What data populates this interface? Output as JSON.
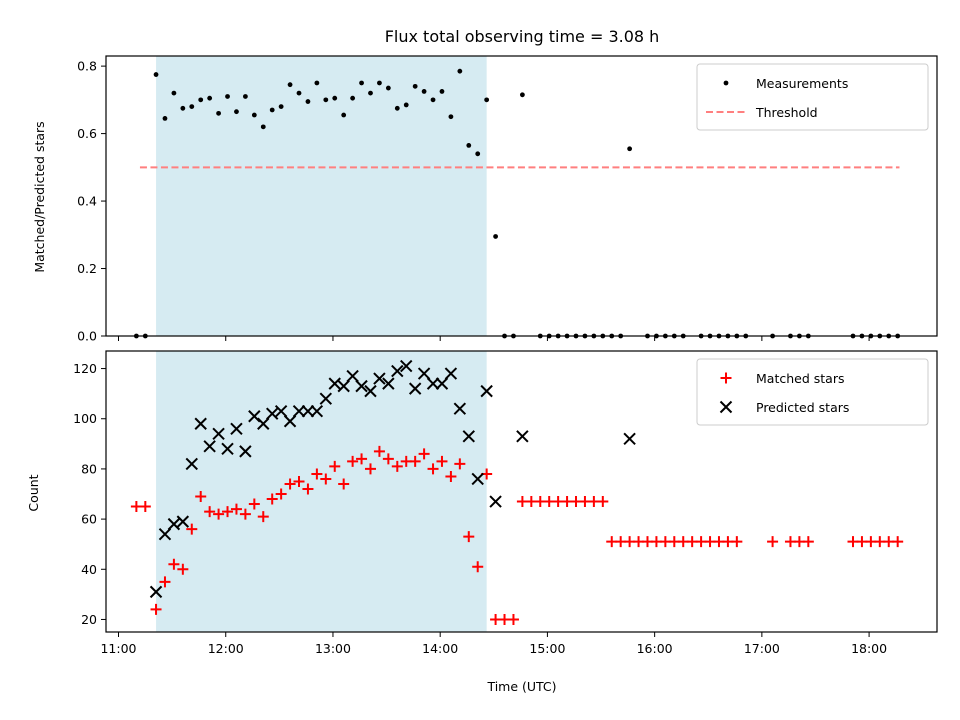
{
  "title": "Flux total observing time = 3.08 h",
  "xlabel": "Time (UTC)",
  "x_ticks": [
    "11:00",
    "12:00",
    "13:00",
    "14:00",
    "15:00",
    "16:00",
    "17:00",
    "18:00"
  ],
  "colors": {
    "measurements": "#000000",
    "threshold": "#ff7f7f",
    "shade": "#add8e6",
    "matched": "#ff0000",
    "predicted": "#000000"
  },
  "chart_data": [
    {
      "type": "scatter",
      "ylabel": "Matched/Predicted stars",
      "ylim": [
        0,
        0.83
      ],
      "y_ticks": [
        "0.0",
        "0.2",
        "0.4",
        "0.6",
        "0.8"
      ],
      "y_tick_values": [
        0,
        0.2,
        0.4,
        0.6,
        0.8
      ],
      "xlim": [
        "10:53",
        "18:38"
      ],
      "shaded_region": [
        "11:21",
        "14:26"
      ],
      "threshold": {
        "y": 0.5,
        "x_start": "11:12",
        "x_end": "18:17"
      },
      "legend": {
        "position": "upper right",
        "entries": [
          "Measurements",
          "Threshold"
        ]
      },
      "series": [
        {
          "name": "Measurements",
          "x": [
            "11:10",
            "11:15",
            "11:21",
            "11:26",
            "11:31",
            "11:36",
            "11:41",
            "11:46",
            "11:51",
            "11:56",
            "12:01",
            "12:06",
            "12:11",
            "12:16",
            "12:21",
            "12:26",
            "12:31",
            "12:36",
            "12:41",
            "12:46",
            "12:51",
            "12:56",
            "13:01",
            "13:06",
            "13:11",
            "13:16",
            "13:21",
            "13:26",
            "13:31",
            "13:36",
            "13:41",
            "13:46",
            "13:51",
            "13:56",
            "14:01",
            "14:06",
            "14:11",
            "14:16",
            "14:21",
            "14:26",
            "14:31",
            "14:36",
            "14:41",
            "14:46",
            "14:56",
            "15:01",
            "15:06",
            "15:11",
            "15:16",
            "15:21",
            "15:26",
            "15:31",
            "15:36",
            "15:41",
            "15:46",
            "15:56",
            "16:01",
            "16:06",
            "16:11",
            "16:16",
            "16:26",
            "16:31",
            "16:36",
            "16:41",
            "16:46",
            "16:51",
            "17:06",
            "17:16",
            "17:21",
            "17:26",
            "17:51",
            "17:56",
            "18:01",
            "18:06",
            "18:11",
            "18:16"
          ],
          "y": [
            0.0,
            0.0,
            0.775,
            0.645,
            0.72,
            0.675,
            0.68,
            0.7,
            0.705,
            0.66,
            0.71,
            0.665,
            0.71,
            0.655,
            0.62,
            0.67,
            0.68,
            0.745,
            0.72,
            0.695,
            0.75,
            0.7,
            0.705,
            0.655,
            0.705,
            0.75,
            0.72,
            0.75,
            0.735,
            0.675,
            0.685,
            0.74,
            0.725,
            0.7,
            0.725,
            0.65,
            0.785,
            0.565,
            0.54,
            0.7,
            0.295,
            0.0,
            0.0,
            0.715,
            0.0,
            0.0,
            0.0,
            0.0,
            0.0,
            0.0,
            0.0,
            0.0,
            0.0,
            0.0,
            0.555,
            0.0,
            0.0,
            0.0,
            0.0,
            0.0,
            0.0,
            0.0,
            0.0,
            0.0,
            0.0,
            0.0,
            0.0,
            0.0,
            0.0,
            0.0,
            0.0,
            0.0,
            0.0,
            0.0,
            0.0,
            0.0
          ]
        }
      ]
    },
    {
      "type": "scatter",
      "ylabel": "Count",
      "ylim": [
        15,
        127
      ],
      "y_ticks": [
        "20",
        "40",
        "60",
        "80",
        "100",
        "120"
      ],
      "y_tick_values": [
        20,
        40,
        60,
        80,
        100,
        120
      ],
      "xlim": [
        "10:53",
        "18:38"
      ],
      "shaded_region": [
        "11:21",
        "14:26"
      ],
      "legend": {
        "position": "upper right",
        "entries": [
          "Matched stars",
          "Predicted stars"
        ]
      },
      "series": [
        {
          "name": "Matched stars",
          "x": [
            "11:10",
            "11:15",
            "11:21",
            "11:26",
            "11:31",
            "11:36",
            "11:41",
            "11:46",
            "11:51",
            "11:56",
            "12:01",
            "12:06",
            "12:11",
            "12:16",
            "12:21",
            "12:26",
            "12:31",
            "12:36",
            "12:41",
            "12:46",
            "12:51",
            "12:56",
            "13:01",
            "13:06",
            "13:11",
            "13:16",
            "13:21",
            "13:26",
            "13:31",
            "13:36",
            "13:41",
            "13:46",
            "13:51",
            "13:56",
            "14:01",
            "14:06",
            "14:11",
            "14:16",
            "14:21",
            "14:26",
            "14:31",
            "14:36",
            "14:41",
            "14:46",
            "14:51",
            "14:56",
            "15:01",
            "15:06",
            "15:11",
            "15:16",
            "15:21",
            "15:26",
            "15:31",
            "15:36",
            "15:41",
            "15:46",
            "15:51",
            "15:56",
            "16:01",
            "16:06",
            "16:11",
            "16:16",
            "16:21",
            "16:26",
            "16:31",
            "16:36",
            "16:41",
            "16:46",
            "17:06",
            "17:16",
            "17:21",
            "17:26",
            "17:51",
            "17:56",
            "18:01",
            "18:06",
            "18:11",
            "18:16"
          ],
          "y": [
            65,
            65,
            24,
            35,
            42,
            40,
            56,
            69,
            63,
            62,
            63,
            64,
            62,
            66,
            61,
            68,
            70,
            74,
            75,
            72,
            78,
            76,
            81,
            74,
            83,
            84,
            80,
            87,
            84,
            81,
            83,
            83,
            86,
            80,
            83,
            77,
            82,
            53,
            41,
            78,
            20,
            20,
            20,
            67,
            67,
            67,
            67,
            67,
            67,
            67,
            67,
            67,
            67,
            51,
            51,
            51,
            51,
            51,
            51,
            51,
            51,
            51,
            51,
            51,
            51,
            51,
            51,
            51,
            51,
            51,
            51,
            51,
            51,
            51,
            51,
            51,
            51,
            51
          ]
        },
        {
          "name": "Predicted stars",
          "x": [
            "11:21",
            "11:26",
            "11:31",
            "11:36",
            "11:41",
            "11:46",
            "11:51",
            "11:56",
            "12:01",
            "12:06",
            "12:11",
            "12:16",
            "12:21",
            "12:26",
            "12:31",
            "12:36",
            "12:41",
            "12:46",
            "12:51",
            "12:56",
            "13:01",
            "13:06",
            "13:11",
            "13:16",
            "13:21",
            "13:26",
            "13:31",
            "13:36",
            "13:41",
            "13:46",
            "13:51",
            "13:56",
            "14:01",
            "14:06",
            "14:11",
            "14:16",
            "14:21",
            "14:26",
            "14:31",
            "14:46",
            "15:46"
          ],
          "y": [
            31,
            54,
            58,
            59,
            82,
            98,
            89,
            94,
            88,
            96,
            87,
            101,
            98,
            102,
            103,
            99,
            103,
            103,
            103,
            108,
            114,
            113,
            117,
            113,
            111,
            116,
            114,
            119,
            121,
            112,
            118,
            114,
            114,
            118,
            104,
            93,
            76,
            111,
            67,
            93,
            92
          ]
        }
      ]
    }
  ]
}
